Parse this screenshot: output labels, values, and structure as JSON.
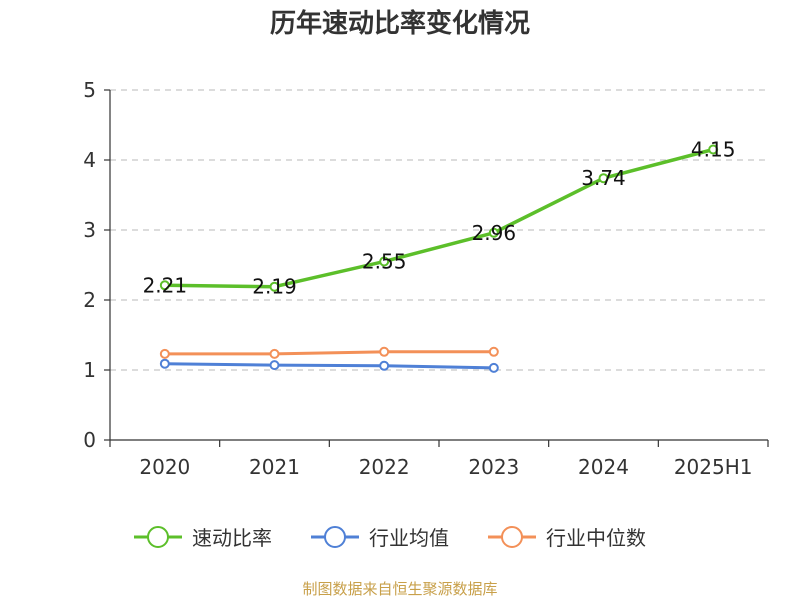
{
  "chart_data": {
    "type": "line",
    "title": "历年速动比率变化情况",
    "categories": [
      "2020",
      "2021",
      "2022",
      "2023",
      "2024",
      "2025H1"
    ],
    "ylim": [
      0,
      5
    ],
    "yticks": [
      "0",
      "1",
      "2",
      "3",
      "4",
      "5"
    ],
    "grid": true,
    "legend_position": "bottom",
    "series": [
      {
        "name": "速动比率",
        "color": "#5cbf2a",
        "values": [
          2.21,
          2.19,
          2.55,
          2.96,
          3.74,
          4.15
        ],
        "labels": [
          "2.21",
          "2.19",
          "2.55",
          "2.96",
          "3.74",
          "4.15"
        ]
      },
      {
        "name": "行业均值",
        "color": "#4f80d6",
        "values": [
          1.09,
          1.07,
          1.06,
          1.03,
          null,
          null
        ]
      },
      {
        "name": "行业中位数",
        "color": "#f39058",
        "values": [
          1.23,
          1.23,
          1.26,
          1.26,
          null,
          null
        ]
      }
    ]
  },
  "footer": {
    "source": "制图数据来自恒生聚源数据库"
  }
}
